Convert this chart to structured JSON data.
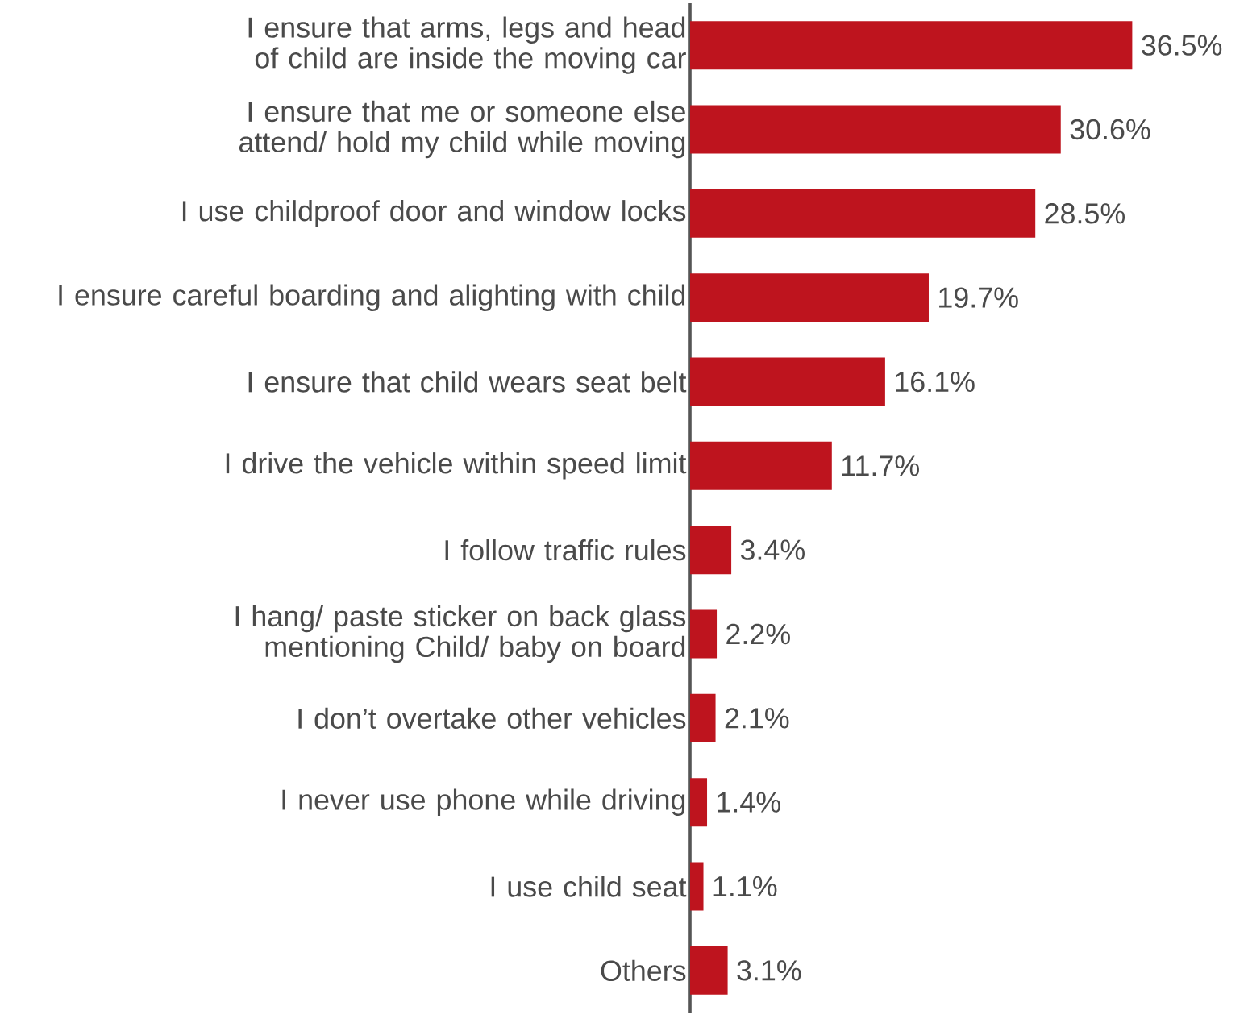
{
  "chart_data": {
    "type": "bar",
    "orientation": "horizontal",
    "categories": [
      "I ensure that arms, legs and head of child are inside the moving car",
      "I ensure that me or someone else attend/ hold my child while moving",
      "I use childproof door and window locks",
      "I ensure careful boarding and alighting with child",
      "I ensure that child wears seat belt",
      "I drive the vehicle within speed limit",
      "I follow traffic rules",
      "I hang/ paste sticker on back glass mentioning Child/ baby on board",
      "I don’t overtake other vehicles",
      "I never use phone while driving",
      "I use child seat",
      "Others"
    ],
    "values": [
      36.5,
      30.6,
      28.5,
      19.7,
      16.1,
      11.7,
      3.4,
      2.2,
      2.1,
      1.4,
      1.1,
      3.1
    ],
    "value_labels": [
      "36.5%",
      "30.6%",
      "28.5%",
      "19.7%",
      "16.1%",
      "11.7%",
      "3.4%",
      "2.2%",
      "2.1%",
      "1.4%",
      "1.1%",
      "3.1%"
    ],
    "color": "#be141e"
  }
}
